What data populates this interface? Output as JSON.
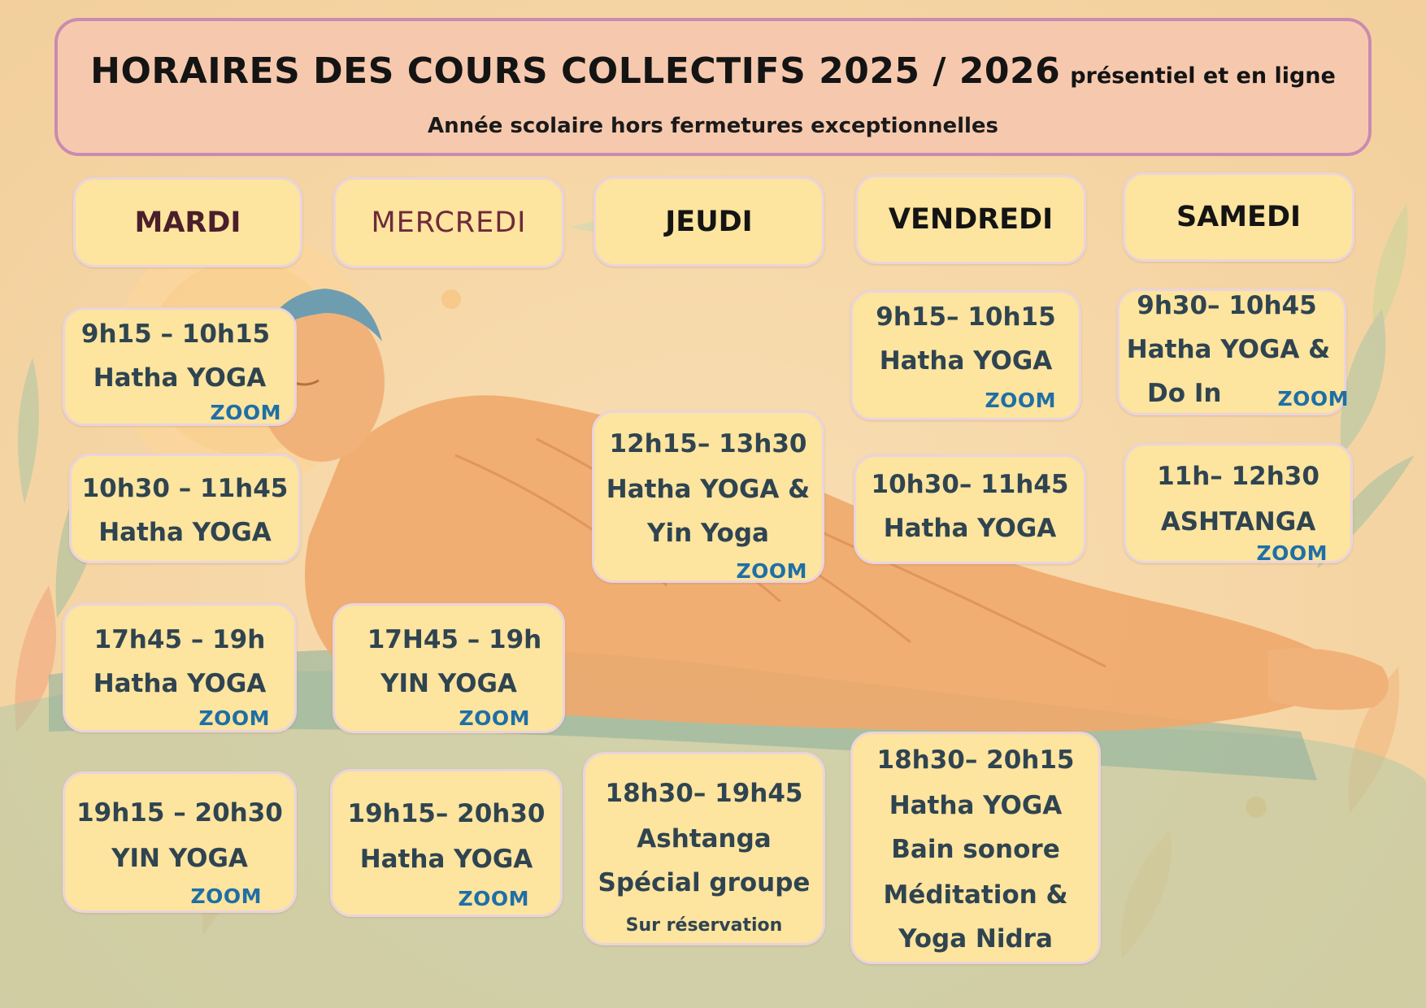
{
  "header": {
    "title": "HORAIRES DES COURS COLLECTIFS 2025 / 2026",
    "title_suffix": "présentiel  et  en ligne",
    "subtitle": "Année  scolaire   hors fermetures exceptionnelles"
  },
  "days": {
    "mardi": "MARDI",
    "mercredi": "MERCREDI",
    "jeudi": "JEUDI",
    "vendredi": "VENDREDI",
    "samedi": "SAMEDI"
  },
  "classes": {
    "mardi_1": {
      "time": "9h15 – 10h15",
      "name": "Hatha YOGA",
      "zoom": "ZOOM"
    },
    "mardi_2": {
      "time": "10h30 – 11h45",
      "name": "Hatha YOGA"
    },
    "mardi_3": {
      "time": "17h45 – 19h",
      "name": "Hatha YOGA",
      "zoom": "ZOOM"
    },
    "mardi_4": {
      "time": "19h15 – 20h30",
      "name": "YIN YOGA",
      "zoom": "ZOOM"
    },
    "mercredi_1": {
      "time": "17H45 – 19h",
      "name": "YIN YOGA",
      "zoom": "ZOOM"
    },
    "mercredi_2": {
      "time": "19h15– 20h30",
      "name": "Hatha YOGA",
      "zoom": "ZOOM"
    },
    "jeudi_1": {
      "time": "12h15– 13h30",
      "name": "Hatha YOGA  &",
      "name2": "Yin Yoga",
      "zoom": "ZOOM"
    },
    "jeudi_2": {
      "time": "18h30– 19h45",
      "name": "Ashtanga",
      "name2": "Spécial groupe",
      "note": "Sur réservation"
    },
    "vendredi_1": {
      "time": "9h15– 10h15",
      "name": "Hatha YOGA",
      "zoom": "ZOOM"
    },
    "vendredi_2": {
      "time": "10h30– 11h45",
      "name": "Hatha YOGA"
    },
    "vendredi_3": {
      "time": "18h30– 20h15",
      "name": "Hatha YOGA",
      "name2": "Bain sonore",
      "name3": "Méditation &",
      "name4": "Yoga Nidra"
    },
    "samedi_1": {
      "time": "9h30– 10h45",
      "name": "Hatha YOGA &",
      "name2": "Do In",
      "zoom": "ZOOM"
    },
    "samedi_2": {
      "time": "11h– 12h30",
      "name": "ASHTANGA",
      "zoom": "ZOOM"
    }
  },
  "colors": {
    "banner": "#f6c9ae",
    "banner_border": "#c98bb0",
    "card": "#fde49f",
    "card_text": "#2f4450",
    "zoom": "#1f6fa6",
    "robe": "#f0a86c",
    "cushion": "#9fbba0"
  }
}
